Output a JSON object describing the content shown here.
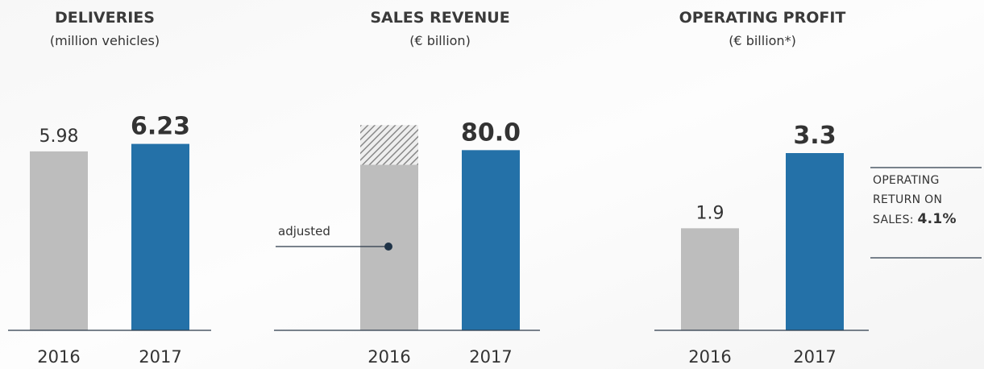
{
  "chart_data": [
    {
      "type": "bar",
      "title": "DELIVERIES",
      "subtitle": "(million vehicles)",
      "categories": [
        "2016",
        "2017"
      ],
      "series": [
        {
          "values": [
            5.98,
            6.23
          ],
          "colors": [
            "#bdbdbd",
            "#2471a8"
          ]
        }
      ],
      "ylim": [
        0,
        7
      ]
    },
    {
      "type": "bar",
      "title": "SALES REVENUE",
      "subtitle": "(€ billion)",
      "categories": [
        "2016",
        "2017"
      ],
      "series": [
        {
          "name": "adjusted",
          "values": [
            73.5,
            80.0
          ],
          "value_labels": [
            null,
            "80.0"
          ],
          "colors": [
            "#bdbdbd",
            "#2471a8"
          ]
        },
        {
          "values": [
            17.6,
            null
          ],
          "pattern": "hatch"
        }
      ],
      "ylim": [
        0,
        93
      ]
    },
    {
      "type": "bar",
      "title": "OPERATING PROFIT",
      "subtitle": "(€ billion*)",
      "categories": [
        "2016",
        "2017"
      ],
      "series": [
        {
          "values": [
            1.9,
            3.3
          ],
          "colors": [
            "#bdbdbd",
            "#2471a8"
          ]
        }
      ],
      "ylim": [
        0,
        3.9
      ],
      "annotation": {
        "text": "OPERATING RETURN ON SALES:",
        "value": 4.1,
        "value_label": "4.1%"
      }
    }
  ]
}
